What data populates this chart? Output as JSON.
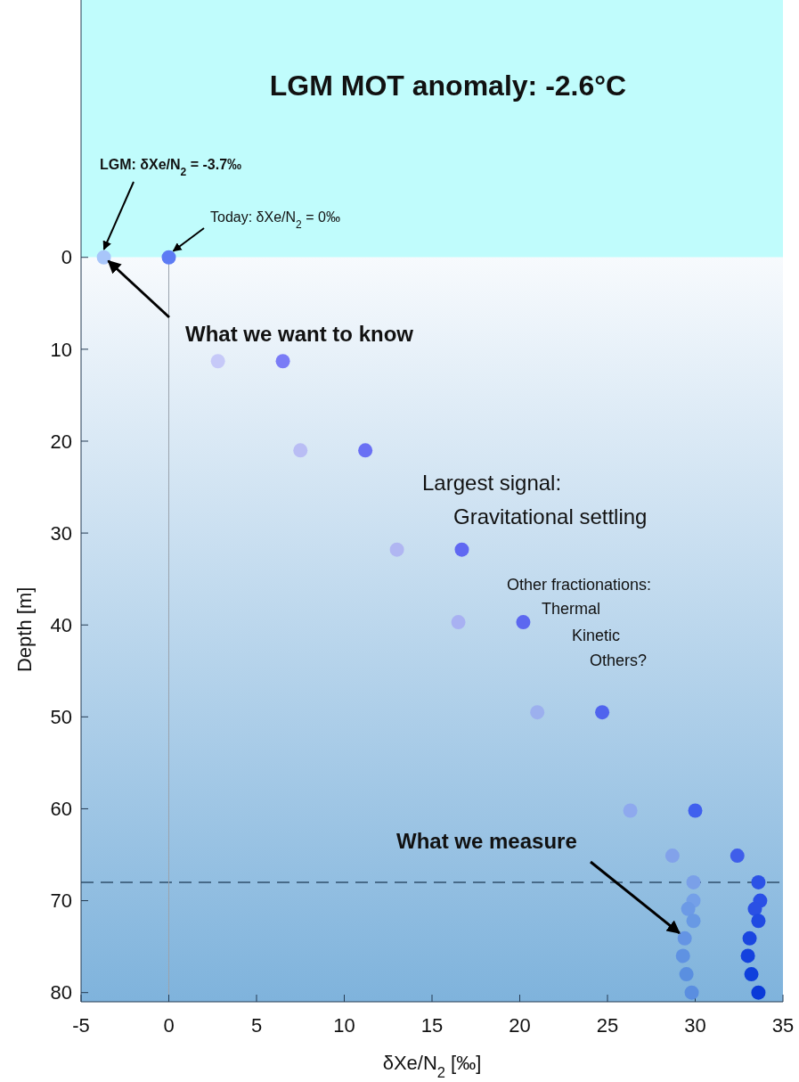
{
  "chart_data": {
    "type": "scatter",
    "title": "LGM MOT anomaly: -2.6°C",
    "xlabel": "δXe/N$_{2}$ [‰]",
    "ylabel": "Depth [m]",
    "xlim": [
      -5,
      35
    ],
    "xticks": [
      -5,
      0,
      5,
      10,
      15,
      20,
      25,
      30,
      35
    ],
    "ylim": [
      81,
      -28
    ],
    "yticks": [
      0,
      10,
      20,
      30,
      40,
      50,
      60,
      70,
      80
    ],
    "grid": false,
    "marker": "circle",
    "series": [
      {
        "x": [
          -3.7,
          2.8,
          7.5,
          13.0,
          16.5,
          21.0,
          26.3,
          28.7,
          29.9,
          29.9,
          29.6,
          29.9,
          29.4,
          29.3,
          29.5,
          29.8
        ],
        "values": [
          0,
          11.3,
          21.0,
          31.8,
          39.7,
          49.5,
          60.2,
          65.1,
          68.0,
          70.0,
          70.9,
          72.2,
          74.1,
          76.0,
          78.0,
          80.0
        ],
        "colors": [
          "#a8c6fa",
          "#c6c9f8",
          "#b9bdf4",
          "#b0b6f2",
          "#a8b1f2",
          "#9cb0ee",
          "#8ea9ee",
          "#82a2ea",
          "#7aa0e8",
          "#74a0e8",
          "#6c9ae6",
          "#6899e4",
          "#6494e4",
          "#5f92e2",
          "#5a8fe0",
          "#5a8ee0"
        ]
      },
      {
        "x": [
          0,
          6.5,
          11.2,
          16.7,
          20.2,
          24.7,
          30.0,
          32.4,
          33.6,
          33.7,
          33.4,
          33.6,
          33.1,
          33.0,
          33.2,
          33.6
        ],
        "values": [
          0,
          11.3,
          21.0,
          31.8,
          39.7,
          49.5,
          60.2,
          65.1,
          68.0,
          70.0,
          70.9,
          72.2,
          74.1,
          76.0,
          78.0,
          80.0
        ],
        "colors": [
          "#5d7cf4",
          "#7a7cf6",
          "#6a70f4",
          "#6068f2",
          "#5c68f0",
          "#5064ee",
          "#4060ee",
          "#3f5eea",
          "#2c52e6",
          "#2a50e6",
          "#2a50e4",
          "#204ae2",
          "#1a46e0",
          "#1442de",
          "#0e40dc",
          "#0a3ad8"
        ]
      }
    ],
    "ref_lines": [
      {
        "axis": "y",
        "value": 68,
        "color": "#2f4f6b",
        "line_style": "dashed"
      },
      {
        "axis": "x",
        "value": 0,
        "color": "#9aa3ad",
        "line_style": "solid"
      }
    ],
    "bands": [
      {
        "axis": "y",
        "from": -28,
        "to": 0,
        "color": "#c0fcfc"
      },
      {
        "axis": "y",
        "from": 0,
        "to": 81,
        "color": "#7fb3dc"
      }
    ],
    "annotations": [
      {
        "text": "LGM: δXe/N$_{2}$ = -3.7‰",
        "x": -3.7,
        "y": 0
      },
      {
        "text": "Today: δXe/N$_{2}$ = 0‰",
        "x": 0,
        "y": 0
      },
      {
        "text": "What we want to know",
        "x": -3.7,
        "y": 0
      },
      "Largest signal:\nGravitational settling",
      "Other fractionations:\nThermal\nKinetic\nOthers?",
      {
        "text": "What we measure",
        "x": 29.4,
        "y": 74.1
      }
    ]
  }
}
